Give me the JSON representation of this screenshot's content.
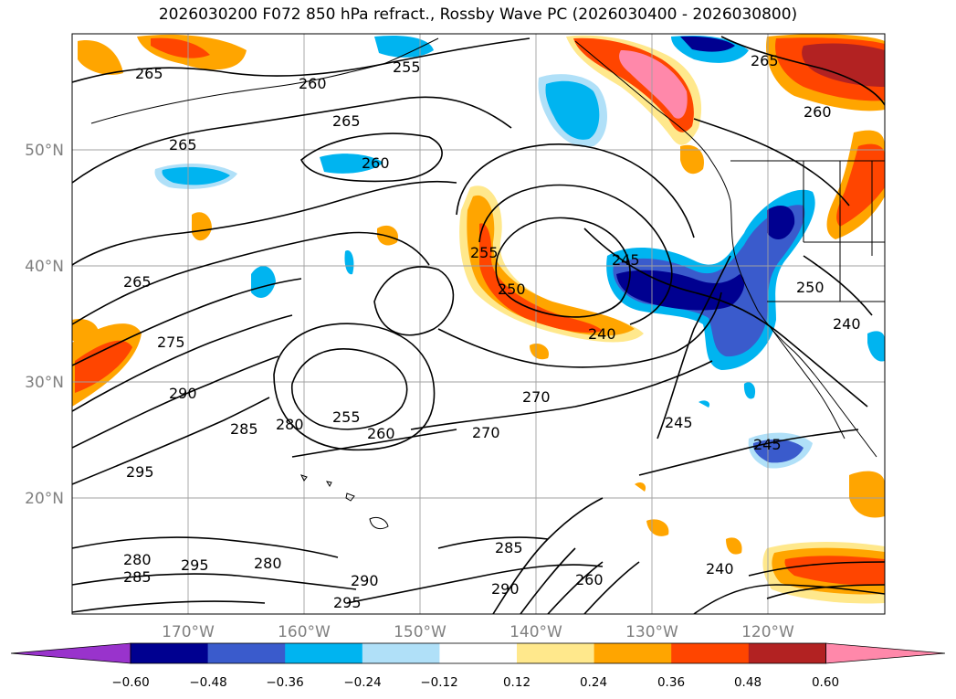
{
  "title": "2026030200 F072 850 hPa refract., Rossby Wave PC (2026030400 - 2026030800)",
  "map": {
    "lat_labels": [
      "50°N",
      "40°N",
      "30°N",
      "20°N"
    ],
    "lon_labels": [
      "170°W",
      "160°W",
      "150°W",
      "140°W",
      "130°W",
      "120°W"
    ],
    "gridlines": true
  },
  "contour_labels": [
    "265",
    "260",
    "255",
    "265",
    "265",
    "260",
    "265",
    "255",
    "250",
    "240",
    "245",
    "265",
    "260",
    "250",
    "240",
    "275",
    "290",
    "285",
    "280",
    "255",
    "260",
    "270",
    "270",
    "245",
    "245",
    "295",
    "280",
    "295",
    "280",
    "285",
    "290",
    "295",
    "285",
    "290",
    "260",
    "240"
  ],
  "colorbar": {
    "ticks": [
      "−0.60",
      "−0.48",
      "−0.36",
      "−0.24",
      "−0.12",
      "0.12",
      "0.24",
      "0.36",
      "0.48",
      "0.60"
    ],
    "colors": [
      "#9933cc",
      "#000090",
      "#3a5bcc",
      "#00b4f0",
      "#b0e0f8",
      "#ffffff",
      "#ffe88c",
      "#ffa500",
      "#ff4500",
      "#b22222",
      "#ff88aa"
    ]
  }
}
